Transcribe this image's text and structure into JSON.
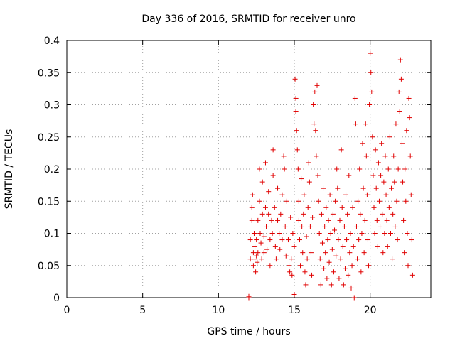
{
  "chart_data": {
    "type": "scatter",
    "title": "Day 336 of 2016, SRMTID for receiver unro",
    "xlabel": "GPS time / hours",
    "ylabel": "SRMTID / TECUs",
    "xlim": [
      0,
      24
    ],
    "ylim": [
      0,
      0.4
    ],
    "xticks": [
      0,
      5,
      10,
      15,
      20
    ],
    "yticks": [
      0,
      0.05,
      0.1,
      0.15,
      0.2,
      0.25,
      0.3,
      0.35,
      0.4
    ],
    "xtick_labels": [
      "0",
      "5",
      "10",
      "15",
      "20"
    ],
    "ytick_labels": [
      "0",
      "0.05",
      "0.1",
      "0.15",
      "0.2",
      "0.25",
      "0.3",
      "0.35",
      "0.4"
    ],
    "grid": true,
    "marker": "+",
    "color": "#e00000",
    "series": [
      {
        "name": "SRMTID",
        "points": [
          [
            12.0,
            0.0
          ],
          [
            12.0,
            0.002
          ],
          [
            12.1,
            0.06
          ],
          [
            12.1,
            0.09
          ],
          [
            12.2,
            0.14
          ],
          [
            12.2,
            0.12
          ],
          [
            12.25,
            0.16
          ],
          [
            12.3,
            0.07
          ],
          [
            12.3,
            0.05
          ],
          [
            12.35,
            0.1
          ],
          [
            12.4,
            0.08
          ],
          [
            12.4,
            0.06
          ],
          [
            12.45,
            0.04
          ],
          [
            12.5,
            0.065
          ],
          [
            12.5,
            0.09
          ],
          [
            12.55,
            0.055
          ],
          [
            12.6,
            0.12
          ],
          [
            12.6,
            0.07
          ],
          [
            12.7,
            0.2
          ],
          [
            12.7,
            0.15
          ],
          [
            12.75,
            0.1
          ],
          [
            12.8,
            0.085
          ],
          [
            12.85,
            0.06
          ],
          [
            12.9,
            0.13
          ],
          [
            12.9,
            0.18
          ],
          [
            13.0,
            0.095
          ],
          [
            13.0,
            0.07
          ],
          [
            13.1,
            0.14
          ],
          [
            13.1,
            0.21
          ],
          [
            13.15,
            0.11
          ],
          [
            13.2,
            0.075
          ],
          [
            13.3,
            0.165
          ],
          [
            13.3,
            0.13
          ],
          [
            13.4,
            0.09
          ],
          [
            13.4,
            0.05
          ],
          [
            13.5,
            0.12
          ],
          [
            13.55,
            0.1
          ],
          [
            13.6,
            0.23
          ],
          [
            13.6,
            0.19
          ],
          [
            13.7,
            0.14
          ],
          [
            13.75,
            0.08
          ],
          [
            13.8,
            0.06
          ],
          [
            13.9,
            0.12
          ],
          [
            13.9,
            0.17
          ],
          [
            14.0,
            0.1
          ],
          [
            14.05,
            0.075
          ],
          [
            14.1,
            0.13
          ],
          [
            14.2,
            0.09
          ],
          [
            14.2,
            0.16
          ],
          [
            14.3,
            0.22
          ],
          [
            14.35,
            0.2
          ],
          [
            14.4,
            0.11
          ],
          [
            14.45,
            0.065
          ],
          [
            14.5,
            0.15
          ],
          [
            14.6,
            0.09
          ],
          [
            14.65,
            0.05
          ],
          [
            14.7,
            0.04
          ],
          [
            14.75,
            0.125
          ],
          [
            14.8,
            0.06
          ],
          [
            14.85,
            0.035
          ],
          [
            14.9,
            0.1
          ],
          [
            15.0,
            0.005
          ],
          [
            15.0,
            0.08
          ],
          [
            15.05,
            0.34
          ],
          [
            15.1,
            0.31
          ],
          [
            15.1,
            0.29
          ],
          [
            15.15,
            0.26
          ],
          [
            15.2,
            0.23
          ],
          [
            15.25,
            0.2
          ],
          [
            15.3,
            0.15
          ],
          [
            15.3,
            0.12
          ],
          [
            15.35,
            0.09
          ],
          [
            15.4,
            0.05
          ],
          [
            15.45,
            0.185
          ],
          [
            15.5,
            0.11
          ],
          [
            15.55,
            0.07
          ],
          [
            15.6,
            0.13
          ],
          [
            15.65,
            0.16
          ],
          [
            15.7,
            0.04
          ],
          [
            15.75,
            0.02
          ],
          [
            15.8,
            0.095
          ],
          [
            15.85,
            0.06
          ],
          [
            15.9,
            0.14
          ],
          [
            15.95,
            0.21
          ],
          [
            16.0,
            0.18
          ],
          [
            16.05,
            0.11
          ],
          [
            16.1,
            0.07
          ],
          [
            16.15,
            0.035
          ],
          [
            16.2,
            0.125
          ],
          [
            16.25,
            0.3
          ],
          [
            16.3,
            0.27
          ],
          [
            16.35,
            0.32
          ],
          [
            16.4,
            0.26
          ],
          [
            16.45,
            0.22
          ],
          [
            16.5,
            0.33
          ],
          [
            16.55,
            0.19
          ],
          [
            16.6,
            0.15
          ],
          [
            16.65,
            0.1
          ],
          [
            16.7,
            0.06
          ],
          [
            16.75,
            0.02
          ],
          [
            16.8,
            0.13
          ],
          [
            16.85,
            0.085
          ],
          [
            16.9,
            0.17
          ],
          [
            16.95,
            0.045
          ],
          [
            17.0,
            0.11
          ],
          [
            17.05,
            0.07
          ],
          [
            17.1,
            0.14
          ],
          [
            17.15,
            0.03
          ],
          [
            17.2,
            0.09
          ],
          [
            17.25,
            0.12
          ],
          [
            17.3,
            0.055
          ],
          [
            17.35,
            0.16
          ],
          [
            17.4,
            0.1
          ],
          [
            17.45,
            0.02
          ],
          [
            17.5,
            0.075
          ],
          [
            17.55,
            0.13
          ],
          [
            17.6,
            0.04
          ],
          [
            17.65,
            0.105
          ],
          [
            17.7,
            0.15
          ],
          [
            17.75,
            0.065
          ],
          [
            17.8,
            0.2
          ],
          [
            17.85,
            0.17
          ],
          [
            17.9,
            0.09
          ],
          [
            17.95,
            0.03
          ],
          [
            18.0,
            0.12
          ],
          [
            18.05,
            0.06
          ],
          [
            18.1,
            0.23
          ],
          [
            18.15,
            0.14
          ],
          [
            18.2,
            0.08
          ],
          [
            18.25,
            0.02
          ],
          [
            18.3,
            0.11
          ],
          [
            18.35,
            0.045
          ],
          [
            18.4,
            0.16
          ],
          [
            18.45,
            0.09
          ],
          [
            18.5,
            0.13
          ],
          [
            18.55,
            0.035
          ],
          [
            18.6,
            0.19
          ],
          [
            18.65,
            0.07
          ],
          [
            18.7,
            0.1
          ],
          [
            18.75,
            0.015
          ],
          [
            18.8,
            0.05
          ],
          [
            18.85,
            0.14
          ],
          [
            18.9,
            0.08
          ],
          [
            18.95,
            0.0
          ],
          [
            19.0,
            0.31
          ],
          [
            19.05,
            0.27
          ],
          [
            19.1,
            0.11
          ],
          [
            19.15,
            0.06
          ],
          [
            19.2,
            0.15
          ],
          [
            19.25,
            0.09
          ],
          [
            19.3,
            0.2
          ],
          [
            19.35,
            0.13
          ],
          [
            19.4,
            0.04
          ],
          [
            19.45,
            0.1
          ],
          [
            19.5,
            0.24
          ],
          [
            19.55,
            0.17
          ],
          [
            19.6,
            0.07
          ],
          [
            19.65,
            0.12
          ],
          [
            19.7,
            0.27
          ],
          [
            19.75,
            0.22
          ],
          [
            19.8,
            0.16
          ],
          [
            19.85,
            0.09
          ],
          [
            19.9,
            0.05
          ],
          [
            19.95,
            0.3
          ],
          [
            20.0,
            0.38
          ],
          [
            20.05,
            0.35
          ],
          [
            20.1,
            0.32
          ],
          [
            20.15,
            0.25
          ],
          [
            20.2,
            0.19
          ],
          [
            20.25,
            0.14
          ],
          [
            20.3,
            0.1
          ],
          [
            20.35,
            0.23
          ],
          [
            20.4,
            0.17
          ],
          [
            20.45,
            0.12
          ],
          [
            20.5,
            0.08
          ],
          [
            20.55,
            0.21
          ],
          [
            20.6,
            0.15
          ],
          [
            20.65,
            0.11
          ],
          [
            20.7,
            0.19
          ],
          [
            20.75,
            0.24
          ],
          [
            20.8,
            0.13
          ],
          [
            20.85,
            0.07
          ],
          [
            20.9,
            0.18
          ],
          [
            20.95,
            0.1
          ],
          [
            21.0,
            0.22
          ],
          [
            21.05,
            0.16
          ],
          [
            21.1,
            0.12
          ],
          [
            21.15,
            0.08
          ],
          [
            21.2,
            0.2
          ],
          [
            21.25,
            0.14
          ],
          [
            21.3,
            0.25
          ],
          [
            21.35,
            0.1
          ],
          [
            21.4,
            0.17
          ],
          [
            21.45,
            0.06
          ],
          [
            21.5,
            0.13
          ],
          [
            21.55,
            0.22
          ],
          [
            21.6,
            0.18
          ],
          [
            21.65,
            0.11
          ],
          [
            21.7,
            0.27
          ],
          [
            21.75,
            0.15
          ],
          [
            21.8,
            0.09
          ],
          [
            21.85,
            0.2
          ],
          [
            21.9,
            0.32
          ],
          [
            21.95,
            0.29
          ],
          [
            22.0,
            0.37
          ],
          [
            22.05,
            0.34
          ],
          [
            22.1,
            0.24
          ],
          [
            22.15,
            0.18
          ],
          [
            22.2,
            0.12
          ],
          [
            22.25,
            0.07
          ],
          [
            22.3,
            0.2
          ],
          [
            22.35,
            0.15
          ],
          [
            22.4,
            0.26
          ],
          [
            22.45,
            0.1
          ],
          [
            22.5,
            0.05
          ],
          [
            22.55,
            0.31
          ],
          [
            22.6,
            0.28
          ],
          [
            22.65,
            0.22
          ],
          [
            22.7,
            0.16
          ],
          [
            22.75,
            0.09
          ],
          [
            22.8,
            0.035
          ]
        ]
      }
    ]
  }
}
